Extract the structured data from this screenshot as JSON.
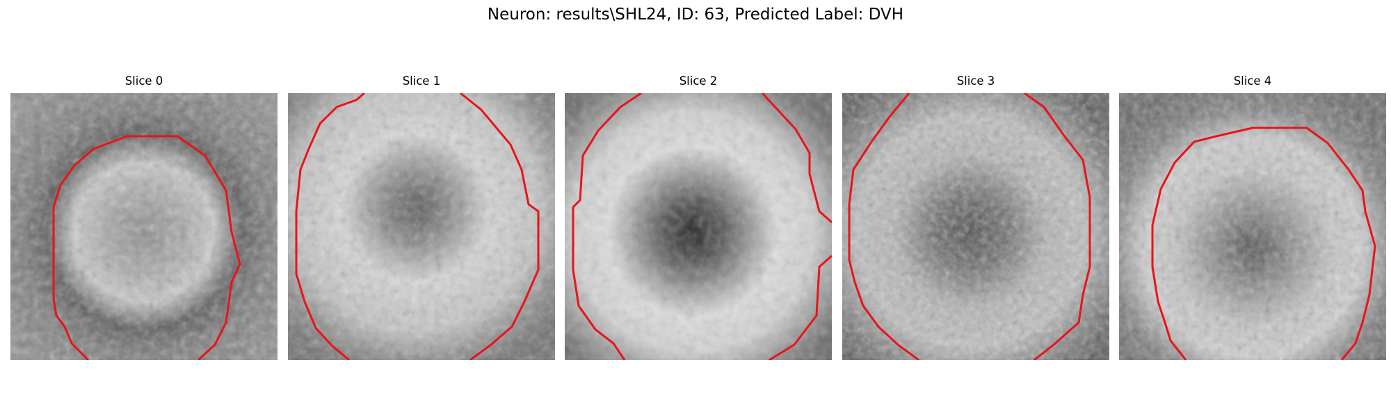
{
  "figure": {
    "title": "Neuron: results\\SHL24, ID: 63, Predicted Label: DVH"
  },
  "panels": [
    {
      "title": "Slice 0"
    },
    {
      "title": "Slice 1"
    },
    {
      "title": "Slice 2"
    },
    {
      "title": "Slice 3"
    },
    {
      "title": "Slice 4"
    }
  ],
  "colors": {
    "contour": "#e8141a",
    "background": "#ffffff"
  }
}
